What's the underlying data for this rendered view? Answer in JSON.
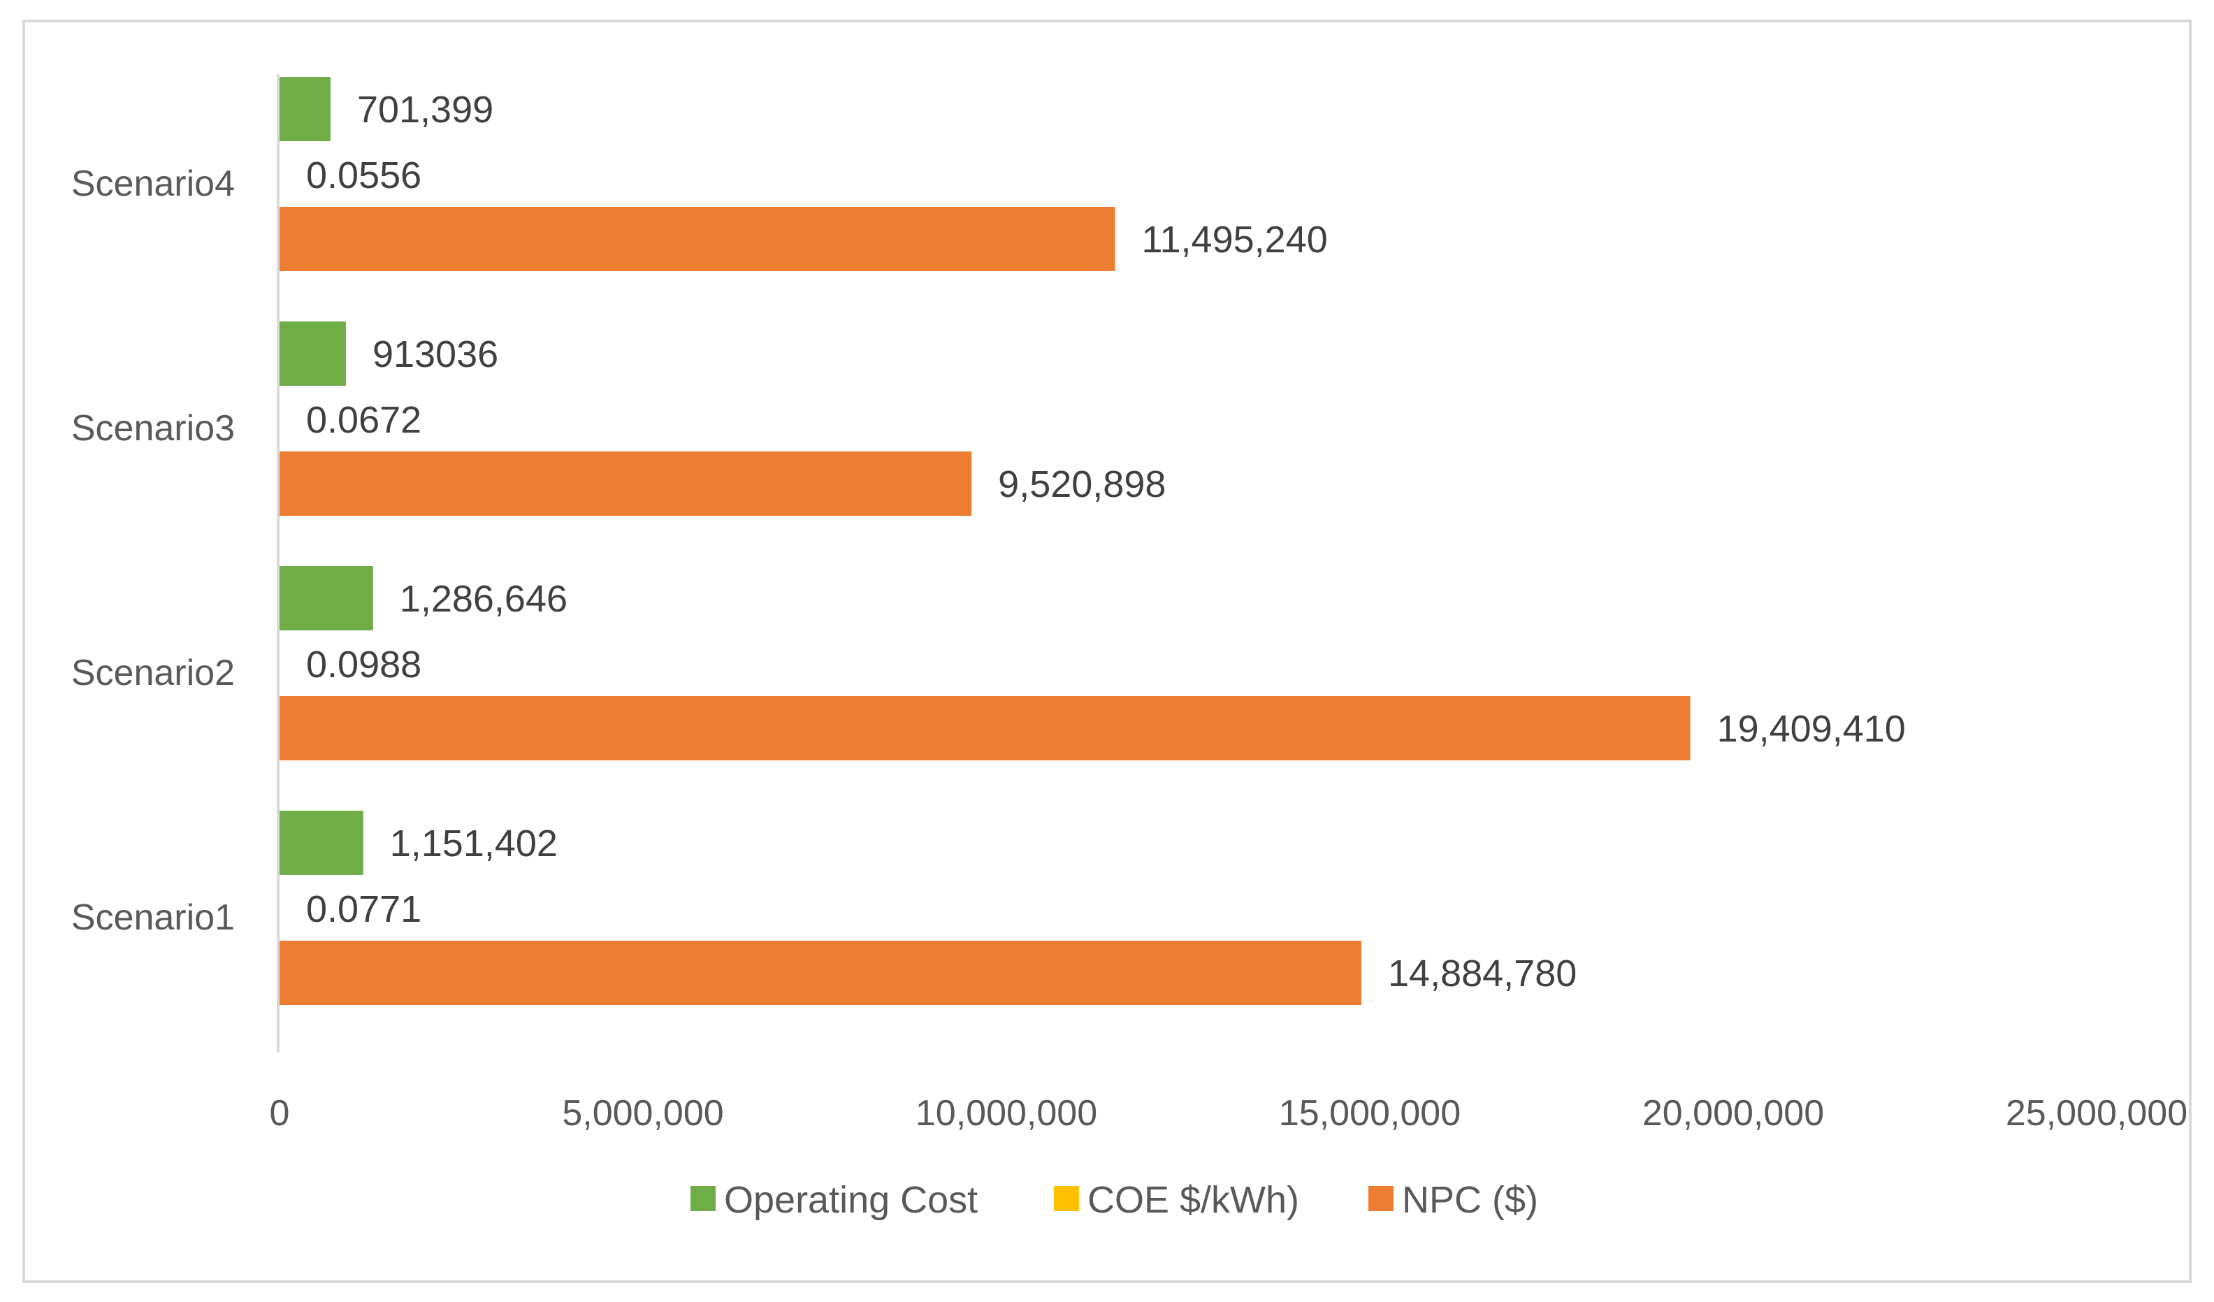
{
  "chart_data": {
    "type": "bar",
    "orientation": "horizontal",
    "title": "",
    "xlabel": "",
    "ylabel": "",
    "categories": [
      "Scenario1",
      "Scenario2",
      "Scenario3",
      "Scenario4"
    ],
    "series": [
      {
        "name": "Operating Cost",
        "color": "#70ad47",
        "values": [
          1151402,
          1286646,
          913036,
          701399
        ],
        "labels": [
          "1,151,402",
          "1,286,646",
          "913036",
          "701,399"
        ]
      },
      {
        "name": "COE $/kWh)",
        "color": "#ffc000",
        "values": [
          0.0771,
          0.0988,
          0.0672,
          0.0556
        ],
        "labels": [
          "0.0771",
          "0.0988",
          "0.0672",
          "0.0556"
        ]
      },
      {
        "name": "NPC ($)",
        "color": "#ed7d31",
        "values": [
          14884780,
          19409410,
          9520898,
          11495240
        ],
        "labels": [
          "14,884,780",
          "19,409,410",
          "9,520,898",
          "11,495,240"
        ]
      }
    ],
    "xlim": [
      0,
      25000000
    ],
    "xticks": [
      0,
      5000000,
      10000000,
      15000000,
      20000000,
      25000000
    ],
    "xtick_labels": [
      "0",
      "5,000,000",
      "10,000,000",
      "15,000,000",
      "20,000,000",
      "25,000,000"
    ],
    "grid": false,
    "legend_position": "bottom"
  }
}
